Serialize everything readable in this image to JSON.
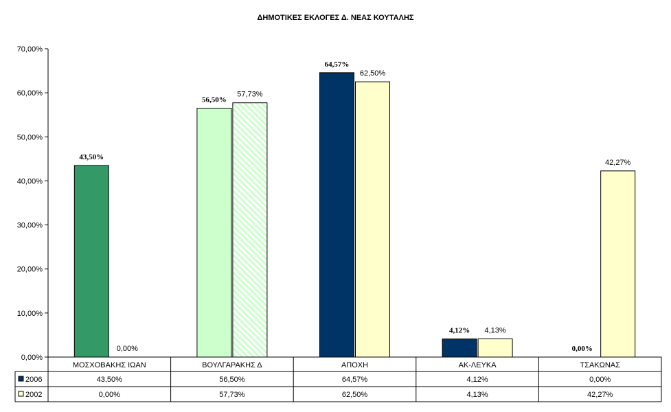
{
  "chart_data": {
    "type": "bar",
    "title": "ΔΗΜΟΤΙΚΕΣ ΕΚΛΟΓΕΣ Δ. ΝΕΑΣ ΚΟΥΤΑΛΗΣ",
    "categories": [
      "ΜΟΣΧΟΒΑΚΗΣ ΙΩΑΝ",
      "ΒΟΥΛΓΑΡΑΚΗΣ Δ",
      "ΑΠΟΧΗ",
      "ΑΚ-ΛΕΥΚΑ",
      "ΤΣΑΚΩΝΑΣ"
    ],
    "series": [
      {
        "name": "2006",
        "values": [
          43.5,
          56.5,
          64.57,
          4.12,
          0.0
        ],
        "labels": [
          "43,50%",
          "56,50%",
          "64,57%",
          "4,12%",
          "0,00%"
        ]
      },
      {
        "name": "2002",
        "values": [
          0.0,
          57.73,
          62.5,
          4.13,
          42.27
        ],
        "labels": [
          "0,00%",
          "57,73%",
          "62,50%",
          "4,13%",
          "42,27%"
        ]
      }
    ],
    "bar_colors": {
      "2006": [
        "#339966",
        "#ccffcc",
        "#003366",
        "#003366",
        "#003366"
      ],
      "2002": [
        "#ffffcc",
        "hatch-green",
        "#ffffcc",
        "#ffffcc",
        "#ffffcc"
      ]
    },
    "legend_colors": {
      "2006": "#003366",
      "2002": "#ffffcc"
    },
    "ylim": [
      0,
      70
    ],
    "yticks": [
      "0,00%",
      "10,00%",
      "20,00%",
      "30,00%",
      "40,00%",
      "50,00%",
      "60,00%",
      "70,00%"
    ],
    "ytick_values": [
      0,
      10,
      20,
      30,
      40,
      50,
      60,
      70
    ],
    "grid": false,
    "legend_placement": "data-table"
  }
}
